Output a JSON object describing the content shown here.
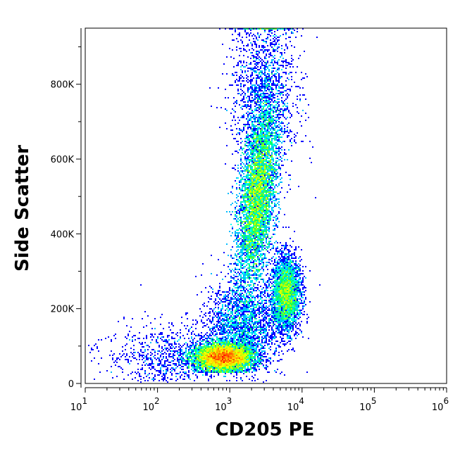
{
  "chart_data": {
    "type": "scatter",
    "subtype": "density-dot-plot",
    "title": "",
    "xlabel": "CD205 PE",
    "ylabel": "Side Scatter",
    "x_scale": "log",
    "xlim": [
      10,
      1000000
    ],
    "ylim": [
      0,
      950000
    ],
    "x_ticks": [
      {
        "value": 10,
        "base": "10",
        "exp": "1"
      },
      {
        "value": 100,
        "base": "10",
        "exp": "2"
      },
      {
        "value": 1000,
        "base": "10",
        "exp": "3"
      },
      {
        "value": 10000,
        "base": "10",
        "exp": "4"
      },
      {
        "value": 100000,
        "base": "10",
        "exp": "5"
      },
      {
        "value": 1000000,
        "base": "10",
        "exp": "6"
      }
    ],
    "y_ticks": [
      {
        "value": 0,
        "label": "0"
      },
      {
        "value": 200000,
        "label": "200K"
      },
      {
        "value": 400000,
        "label": "400K"
      },
      {
        "value": 600000,
        "label": "600K"
      },
      {
        "value": 800000,
        "label": "800K"
      }
    ],
    "grid": false,
    "legend": "none",
    "colormap": [
      "#0000ff",
      "#00a0ff",
      "#00ffff",
      "#00ff60",
      "#c0ff00",
      "#ffff00",
      "#ff8000",
      "#ff0000"
    ],
    "populations": [
      {
        "x_center": 800,
        "y_center": 70000,
        "x_sd_decades": 0.2,
        "y_sd": 18000,
        "events": 9000
      },
      {
        "x_center": 2400,
        "y_center": 500000,
        "x_sd_decades": 0.12,
        "y_sd": 120000,
        "events": 9000
      },
      {
        "x_center": 6000,
        "y_center": 240000,
        "x_sd_decades": 0.1,
        "y_sd": 50000,
        "events": 3500
      },
      {
        "x_center": 1500,
        "y_center": 150000,
        "x_sd_decades": 0.25,
        "y_sd": 60000,
        "events": 2500
      },
      {
        "x_center": 150,
        "y_center": 70000,
        "x_sd_decades": 0.45,
        "y_sd": 45000,
        "events": 900
      },
      {
        "x_center": 3000,
        "y_center": 780000,
        "x_sd_decades": 0.22,
        "y_sd": 120000,
        "events": 1800
      }
    ]
  }
}
